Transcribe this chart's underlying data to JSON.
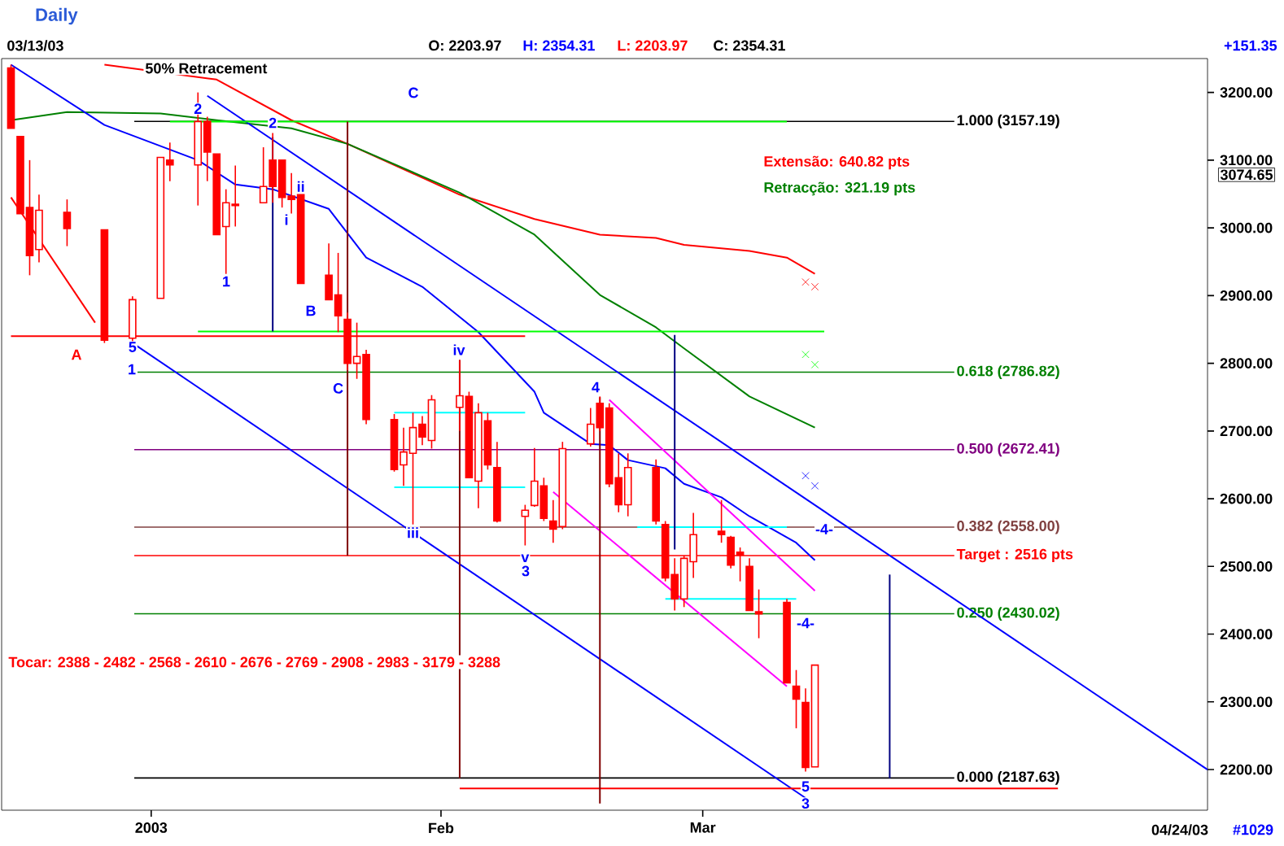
{
  "chart_data": {
    "type": "candlestick",
    "title": "Daily",
    "x": [
      "2002-12-17",
      "2002-12-18",
      "2002-12-19",
      "2002-12-20",
      "2002-12-23",
      "2002-12-27",
      "2002-12-30",
      "2003-01-02",
      "2003-01-03",
      "2003-01-06",
      "2003-01-07",
      "2003-01-08",
      "2003-01-09",
      "2003-01-10",
      "2003-01-13",
      "2003-01-14",
      "2003-01-15",
      "2003-01-16",
      "2003-01-17",
      "2003-01-20",
      "2003-01-21",
      "2003-01-22",
      "2003-01-23",
      "2003-01-24",
      "2003-01-27",
      "2003-01-28",
      "2003-01-29",
      "2003-01-30",
      "2003-01-31",
      "2003-02-03",
      "2003-02-04",
      "2003-02-05",
      "2003-02-06",
      "2003-02-07",
      "2003-02-10",
      "2003-02-11",
      "2003-02-12",
      "2003-02-13",
      "2003-02-14",
      "2003-02-17",
      "2003-02-18",
      "2003-02-19",
      "2003-02-20",
      "2003-02-21",
      "2003-02-24",
      "2003-02-25",
      "2003-02-26",
      "2003-02-27",
      "2003-02-28",
      "2003-03-03",
      "2003-03-04",
      "2003-03-05",
      "2003-03-06",
      "2003-03-07",
      "2003-03-10",
      "2003-03-11",
      "2003-03-12",
      "2003-03-13"
    ],
    "ohlc": [
      [
        3236,
        3241,
        3147,
        3147
      ],
      [
        3135,
        3135,
        3021,
        3021
      ],
      [
        3030,
        3100,
        2930,
        2959
      ],
      [
        2968,
        3049,
        2949,
        3026
      ],
      [
        3023,
        3042,
        2973,
        2999
      ],
      [
        2997,
        2997,
        2830,
        2834
      ],
      [
        2837,
        2899,
        2830,
        2894
      ],
      [
        2896,
        3104,
        2896,
        3104
      ],
      [
        3100,
        3126,
        3069,
        3093
      ],
      [
        3093,
        3200,
        3033,
        3157
      ],
      [
        3157,
        3164,
        3069,
        3112
      ],
      [
        3109,
        3109,
        2990,
        2990
      ],
      [
        3002,
        3057,
        2932,
        3037
      ],
      [
        3033,
        3092,
        3002,
        3035
      ],
      [
        3037,
        3119,
        3037,
        3061
      ],
      [
        3100,
        3140,
        3037,
        3061
      ],
      [
        3100,
        3100,
        3030,
        3045
      ],
      [
        3047,
        3081,
        3021,
        3042
      ],
      [
        3049,
        3049,
        2918,
        2918
      ],
      [
        2930,
        2977,
        2894,
        2894
      ],
      [
        2901,
        2963,
        2846,
        2870
      ],
      [
        2865,
        2875,
        2790,
        2800
      ],
      [
        2800,
        2860,
        2777,
        2810
      ],
      [
        2813,
        2820,
        2710,
        2717
      ],
      [
        2717,
        2725,
        2640,
        2643
      ],
      [
        2650,
        2705,
        2619,
        2669
      ],
      [
        2667,
        2727,
        2562,
        2705
      ],
      [
        2710,
        2722,
        2679,
        2691
      ],
      [
        2686,
        2753,
        2674,
        2746
      ],
      [
        2735,
        2805,
        2700,
        2752
      ],
      [
        2751,
        2758,
        2631,
        2631
      ],
      [
        2626,
        2741,
        2586,
        2727
      ],
      [
        2715,
        2727,
        2643,
        2650
      ],
      [
        2646,
        2684,
        2565,
        2567
      ],
      [
        2574,
        2591,
        2531,
        2583
      ],
      [
        2590,
        2675,
        2588,
        2626
      ],
      [
        2619,
        2631,
        2567,
        2571
      ],
      [
        2567,
        2598,
        2535,
        2555
      ],
      [
        2559,
        2684,
        2555,
        2674
      ],
      [
        2681,
        2734,
        2677,
        2710
      ],
      [
        2741,
        2751,
        2700,
        2705
      ],
      [
        2734,
        2741,
        2617,
        2622
      ],
      [
        2631,
        2667,
        2580,
        2591
      ],
      [
        2591,
        2667,
        2574,
        2646
      ],
      [
        2646,
        2658,
        2562,
        2567
      ],
      [
        2562,
        2567,
        2478,
        2483
      ],
      [
        2488,
        2512,
        2435,
        2452
      ],
      [
        2452,
        2516,
        2440,
        2512
      ],
      [
        2507,
        2579,
        2483,
        2547
      ],
      [
        2552,
        2598,
        2535,
        2547
      ],
      [
        2543,
        2545,
        2497,
        2502
      ],
      [
        2521,
        2528,
        2478,
        2517
      ],
      [
        2500,
        2512,
        2435,
        2435
      ],
      [
        2433,
        2466,
        2394,
        2430
      ],
      [
        2447,
        2452,
        2328,
        2328
      ],
      [
        2323,
        2347,
        2261,
        2304
      ],
      [
        2299,
        2320,
        2197,
        2203
      ],
      [
        2203.97,
        2354.31,
        2203.97,
        2354.31
      ]
    ],
    "xlim": [
      "2002-12-16",
      "2003-04-24"
    ],
    "xticks": [
      {
        "value": "2003",
        "label": "2003"
      },
      {
        "value": "2003-02",
        "label": "Feb"
      },
      {
        "value": "2003-03",
        "label": "Mar"
      }
    ],
    "ylim": [
      2140,
      3250
    ],
    "yticks": [
      {
        "value": 2200,
        "label": "2200.00"
      },
      {
        "value": 2300,
        "label": "2300.00"
      },
      {
        "value": 2400,
        "label": "2400.00"
      },
      {
        "value": 2500,
        "label": "2500.00"
      },
      {
        "value": 2600,
        "label": "2600.00"
      },
      {
        "value": 2700,
        "label": "2700.00"
      },
      {
        "value": 2800,
        "label": "2800.00"
      },
      {
        "value": 2900,
        "label": "2900.00"
      },
      {
        "value": 3000,
        "label": "3000.00"
      },
      {
        "value": 3100,
        "label": "3100.00"
      },
      {
        "value": 3200,
        "label": "3200.00"
      }
    ],
    "series": [
      {
        "type": "line",
        "color": "#ff0000",
        "x": [
          "2002-12-27",
          "2003-01-08",
          "2003-01-16",
          "2003-01-22",
          "2003-02-03",
          "2003-02-11",
          "2003-02-18",
          "2003-02-24",
          "2003-02-27",
          "2003-03-06",
          "2003-03-10",
          "2003-03-13"
        ],
        "values": [
          3241,
          3219,
          3159,
          3124,
          3049,
          3013,
          2990,
          2985,
          2975,
          2966,
          2956,
          2932
        ]
      },
      {
        "type": "line",
        "color": "#008000",
        "x": [
          "2002-12-17",
          "2002-12-23",
          "2003-01-02",
          "2003-01-08",
          "2003-01-16",
          "2003-01-22",
          "2003-02-03",
          "2003-02-11",
          "2003-02-18",
          "2003-02-24",
          "2003-02-27",
          "2003-03-06",
          "2003-03-13"
        ],
        "values": [
          3159,
          3171,
          3169,
          3159,
          3147,
          3124,
          3052,
          2990,
          2901,
          2853,
          2822,
          2751,
          2705
        ]
      },
      {
        "type": "line",
        "color": "#0000ff",
        "x": [
          "2002-12-17",
          "2002-12-27",
          "2003-01-06",
          "2003-01-10",
          "2003-01-14",
          "2003-01-20",
          "2003-01-24",
          "2003-01-30",
          "2003-02-05",
          "2003-02-11",
          "2003-02-12",
          "2003-02-17",
          "2003-02-19",
          "2003-02-21",
          "2003-02-25",
          "2003-02-27",
          "2003-03-03",
          "2003-03-06",
          "2003-03-11",
          "2003-03-13"
        ],
        "values": [
          3241,
          3152,
          3100,
          3064,
          3057,
          3028,
          2956,
          2913,
          2846,
          2758,
          2727,
          2681,
          2679,
          2657,
          2645,
          2622,
          2602,
          2574,
          2535,
          2509
        ]
      },
      {
        "type": "line",
        "color": "#0000ff",
        "x": [
          "2003-01-07",
          "2003-04-24"
        ],
        "values": [
          3195,
          2200
        ]
      },
      {
        "type": "line",
        "color": "#0000ff",
        "x": [
          "2002-12-30",
          "2003-03-12"
        ],
        "values": [
          2830,
          2158
        ]
      },
      {
        "type": "line",
        "color": "#ff0000",
        "x": [
          "2002-12-17",
          "2002-12-26"
        ],
        "values": [
          3045,
          2860
        ]
      },
      {
        "type": "line",
        "color": "#00ff00",
        "x": [
          "2003-01-03",
          "2003-03-10"
        ],
        "values": [
          3157,
          3157
        ]
      },
      {
        "type": "line",
        "color": "#00ff00",
        "x": [
          "2003-01-06",
          "2003-03-14"
        ],
        "values": [
          2847,
          2847
        ]
      },
      {
        "type": "line",
        "color": "#ff0000",
        "x": [
          "2002-12-17",
          "2003-02-10"
        ],
        "values": [
          2840,
          2840
        ]
      },
      {
        "type": "line",
        "color": "#ff0000",
        "x": [
          "2003-02-03",
          "2003-04-08"
        ],
        "values": [
          2172,
          2172
        ]
      },
      {
        "type": "line",
        "color": "#00ffff",
        "x": [
          "2003-01-27",
          "2003-02-10"
        ],
        "values": [
          2727,
          2727
        ]
      },
      {
        "type": "line",
        "color": "#00ffff",
        "x": [
          "2003-01-27",
          "2003-02-10"
        ],
        "values": [
          2617,
          2617
        ]
      },
      {
        "type": "line",
        "color": "#00ffff",
        "x": [
          "2003-02-22",
          "2003-03-10"
        ],
        "values": [
          2558,
          2558
        ]
      },
      {
        "type": "line",
        "color": "#00ffff",
        "x": [
          "2003-02-25",
          "2003-03-11"
        ],
        "values": [
          2452,
          2452
        ]
      },
      {
        "type": "line",
        "color": "#ff00ff",
        "x": [
          "2003-02-19",
          "2003-03-13"
        ],
        "values": [
          2746,
          2464
        ]
      },
      {
        "type": "line",
        "color": "#ff00ff",
        "x": [
          "2003-02-13",
          "2003-03-10"
        ],
        "values": [
          2610,
          2323
        ]
      },
      {
        "type": "line",
        "color": "#800000",
        "x": [
          "2003-01-22",
          "2003-01-22"
        ],
        "values": [
          3157,
          2516
        ]
      },
      {
        "type": "line",
        "color": "#800000",
        "x": [
          "2003-02-03",
          "2003-02-03"
        ],
        "values": [
          2805,
          2187
        ]
      },
      {
        "type": "line",
        "color": "#800000",
        "x": [
          "2003-02-18",
          "2003-02-18"
        ],
        "values": [
          2750,
          2150
        ]
      },
      {
        "type": "line",
        "color": "#000080",
        "x": [
          "2003-01-14",
          "2003-01-14"
        ],
        "values": [
          2847,
          3134
        ]
      },
      {
        "type": "line",
        "color": "#000080",
        "x": [
          "2003-02-26",
          "2003-02-26"
        ],
        "values": [
          2525,
          2842
        ]
      },
      {
        "type": "line",
        "color": "#000080",
        "x": [
          "2003-03-21",
          "2003-03-21"
        ],
        "values": [
          2187,
          2488
        ]
      },
      {
        "type": "scatter",
        "marker": "cross",
        "color": "#ff0000",
        "x": [
          "2003-03-12",
          "2003-03-13"
        ],
        "values": [
          2920,
          2913
        ]
      },
      {
        "type": "scatter",
        "marker": "cross",
        "color": "#00ff00",
        "x": [
          "2003-03-12",
          "2003-03-13"
        ],
        "values": [
          2813,
          2798
        ]
      },
      {
        "type": "scatter",
        "marker": "cross",
        "color": "#0000ff",
        "x": [
          "2003-03-12",
          "2003-03-13"
        ],
        "values": [
          2634,
          2619
        ]
      }
    ],
    "ref_lines": [
      {
        "axis": "y",
        "value": 3157.19,
        "label": "1.000 (3157.19)",
        "color": "#000000"
      },
      {
        "axis": "y",
        "value": 2786.82,
        "label": "0.618 (2786.82)",
        "color": "#008000"
      },
      {
        "axis": "y",
        "value": 2672.41,
        "label": "0.500 (2672.41)",
        "color": "#800080"
      },
      {
        "axis": "y",
        "value": 2558.0,
        "label": "0.382 (2558.00)",
        "color": "#804040"
      },
      {
        "axis": "y",
        "value": 2430.02,
        "label": "0.250 (2430.02)",
        "color": "#008000"
      },
      {
        "axis": "y",
        "value": 2187.63,
        "label": "0.000 (2187.63)",
        "color": "#000000"
      },
      {
        "axis": "y",
        "value": 2516,
        "label": "Target :  2516 pts",
        "color": "#ff0000"
      }
    ],
    "annotations": [
      "50% Retracement",
      "Extensão: 640.82 pts",
      "Retracção: 321.19 pts",
      "Tocar: 2388 - 2482 - 2568 - 2610 - 2676 - 2769 - 2908 - 2983 - 3179 - 3288",
      "03/13/03",
      "O: 2203.97",
      "H: 2354.31",
      "L: 2203.97",
      "C: 2354.31",
      "+151.35",
      "04/24/03",
      "#1029",
      "3074.65",
      "C",
      "1",
      "A",
      "1",
      "i",
      "B",
      "iv",
      "3",
      "4",
      "-4-",
      {
        "text": "2",
        "x": "2003-01-06",
        "y": 3176
      },
      {
        "text": "5",
        "x": "2002-12-30",
        "y": 2824
      },
      {
        "text": "2",
        "x": "2003-01-14",
        "y": 3155
      },
      {
        "text": "ii",
        "x": "2003-01-17",
        "y": 3061
      },
      {
        "text": "C",
        "x": "2003-01-21",
        "y": 2763
      },
      {
        "text": "iii",
        "x": "2003-01-29",
        "y": 2550
      },
      {
        "text": "v",
        "x": "2003-02-10",
        "y": 2512
      },
      {
        "text": "-4-",
        "x": "2003-03-14",
        "y": 2555
      },
      {
        "text": "5",
        "x": "2003-03-12",
        "y": 2175
      },
      {
        "text": "3",
        "x": "2003-03-12",
        "y": 2150
      }
    ]
  }
}
